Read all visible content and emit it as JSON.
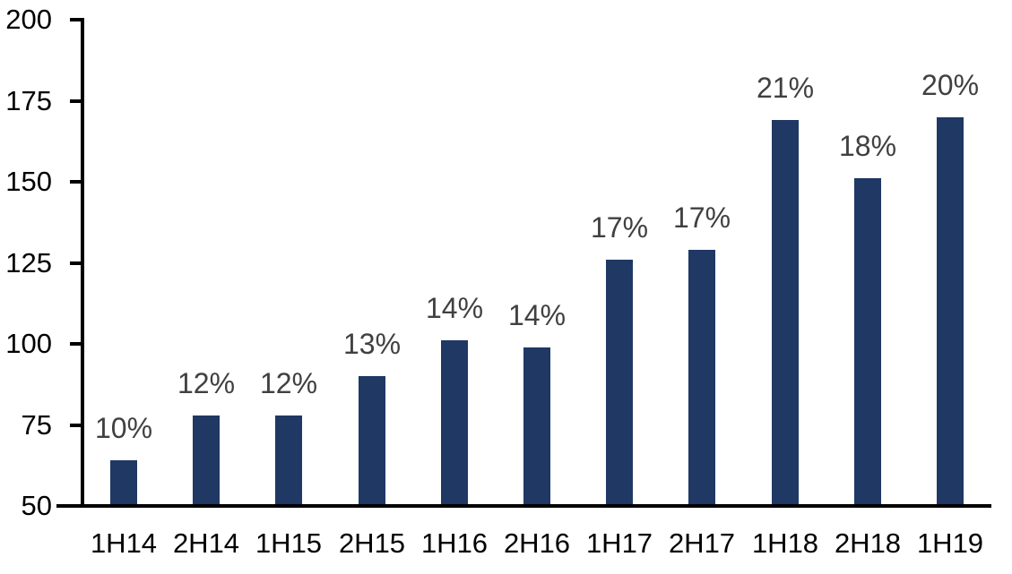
{
  "chart_data": {
    "type": "bar",
    "title": "",
    "xlabel": "",
    "ylabel": "",
    "categories": [
      "1H14",
      "2H14",
      "1H15",
      "2H15",
      "1H16",
      "2H16",
      "1H17",
      "2H17",
      "1H18",
      "2H18",
      "1H19"
    ],
    "values": [
      64,
      78,
      78,
      90,
      101,
      99,
      126,
      129,
      169,
      151,
      170
    ],
    "bar_labels": [
      "10%",
      "12%",
      "12%",
      "13%",
      "14%",
      "14%",
      "17%",
      "17%",
      "21%",
      "18%",
      "20%"
    ],
    "ylim": [
      50,
      200
    ],
    "yticks": [
      50,
      75,
      100,
      125,
      150,
      175,
      200
    ],
    "ytick_labels": [
      "50",
      "75",
      "100",
      "125",
      "150",
      "175",
      "200"
    ],
    "grid": false,
    "legend": "none",
    "bar_color": "#1F3864",
    "bar_label_color": "#404040",
    "axis_color": "#000000",
    "text_color": "#000000"
  }
}
